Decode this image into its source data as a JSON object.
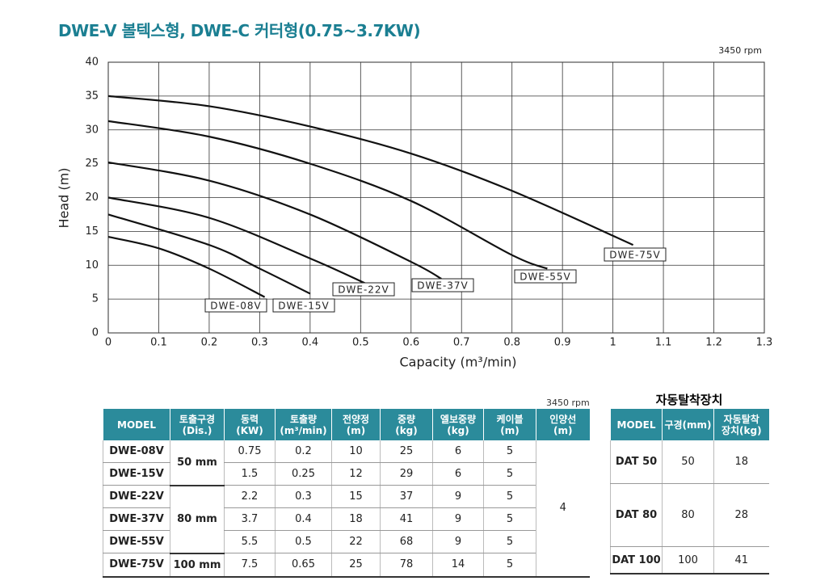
{
  "header": {
    "title": "DWE-V 볼텍스형, DWE-C 커터형(0.75~3.7KW)"
  },
  "chart_data": {
    "type": "line",
    "annotation": "3450 rpm",
    "x_label": "Capacity (m³/min)",
    "y_label": "Head (m)",
    "xlim": [
      0,
      1.3
    ],
    "xticks": [
      0,
      0.1,
      0.2,
      0.3,
      0.4,
      0.5,
      0.6,
      0.7,
      0.8,
      0.9,
      1.0,
      1.1,
      1.2,
      1.3
    ],
    "ylim": [
      0,
      40
    ],
    "yticks": [
      0,
      5,
      10,
      15,
      20,
      25,
      30,
      35,
      40
    ],
    "grid": true,
    "series": [
      {
        "name": "DWE-08V",
        "color": "#111111",
        "x": [
          0,
          0.1,
          0.2,
          0.31
        ],
        "values": [
          14.2,
          12.5,
          9.5,
          5.3
        ]
      },
      {
        "name": "DWE-15V",
        "color": "#111111",
        "x": [
          0,
          0.2,
          0.3,
          0.4
        ],
        "values": [
          17.5,
          13,
          9.5,
          5.8
        ]
      },
      {
        "name": "DWE-22V",
        "color": "#111111",
        "x": [
          0,
          0.2,
          0.4,
          0.51
        ],
        "values": [
          20,
          17,
          11,
          7.3
        ]
      },
      {
        "name": "DWE-37V",
        "color": "#111111",
        "x": [
          0,
          0.2,
          0.4,
          0.6,
          0.66
        ],
        "values": [
          25.2,
          22.5,
          17.5,
          10.5,
          8
        ]
      },
      {
        "name": "DWE-55V",
        "color": "#111111",
        "x": [
          0,
          0.2,
          0.4,
          0.6,
          0.8,
          0.87
        ],
        "values": [
          31.3,
          29,
          25,
          19.5,
          11.5,
          9.5
        ]
      },
      {
        "name": "DWE-75V",
        "color": "#111111",
        "x": [
          0,
          0.2,
          0.4,
          0.6,
          0.8,
          1.04
        ],
        "values": [
          35,
          33.5,
          30.5,
          26.5,
          21,
          13
        ]
      }
    ]
  },
  "table": {
    "note": "3450 rpm",
    "headers": [
      "MODEL",
      "토출구경\n(Dis.)",
      "동력\n(KW)",
      "토출량\n(m³/min)",
      "전양정\n(m)",
      "중량\n(kg)",
      "엘보중량\n(kg)",
      "케이블\n(m)",
      "인양선\n(m)"
    ],
    "dis": [
      "50 mm",
      "80 mm",
      "100 mm"
    ],
    "lift": "4",
    "rows": [
      [
        "DWE-08V",
        "0.75",
        "0.2",
        "10",
        "25",
        "6",
        "5"
      ],
      [
        "DWE-15V",
        "1.5",
        "0.25",
        "12",
        "29",
        "6",
        "5"
      ],
      [
        "DWE-22V",
        "2.2",
        "0.3",
        "15",
        "37",
        "9",
        "5"
      ],
      [
        "DWE-37V",
        "3.7",
        "0.4",
        "18",
        "41",
        "9",
        "5"
      ],
      [
        "DWE-55V",
        "5.5",
        "0.5",
        "22",
        "68",
        "9",
        "5"
      ],
      [
        "DWE-75V",
        "7.5",
        "0.65",
        "25",
        "78",
        "14",
        "5"
      ]
    ]
  },
  "table2": {
    "title": "자동탈착장치",
    "headers": [
      "MODEL",
      "구경(mm)",
      "자동탈착\n장치(kg)"
    ],
    "rows": [
      [
        "DAT 50",
        "50",
        "18"
      ],
      [
        "DAT 80",
        "80",
        "28"
      ],
      [
        "DAT 100",
        "100",
        "41"
      ]
    ]
  }
}
